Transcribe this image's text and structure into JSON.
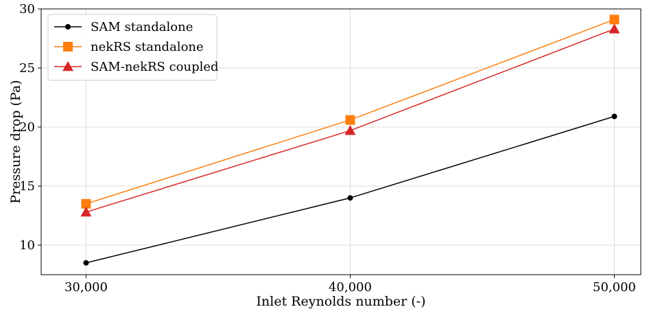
{
  "chart_data": {
    "type": "line",
    "xlabel": "Inlet Reynolds number (-)",
    "ylabel": "Pressure drop (Pa)",
    "x": [
      30000,
      40000,
      50000
    ],
    "x_tick_labels": [
      "30,000",
      "40,000",
      "50,000"
    ],
    "xlim": [
      28300,
      51000
    ],
    "ylim": [
      7.5,
      30
    ],
    "yticks": [
      10,
      15,
      20,
      25,
      30
    ],
    "grid": true,
    "legend_position": "top-left",
    "series": [
      {
        "name": "SAM standalone",
        "values": [
          8.5,
          14.0,
          20.9
        ],
        "color": "#000000",
        "marker": "circle"
      },
      {
        "name": "nekRS standalone",
        "values": [
          13.5,
          20.6,
          29.1
        ],
        "color": "#ff7f0e",
        "marker": "square"
      },
      {
        "name": "SAM-nekRS coupled",
        "values": [
          12.8,
          19.7,
          28.3
        ],
        "color": "#d62728",
        "marker": "triangle"
      }
    ]
  }
}
